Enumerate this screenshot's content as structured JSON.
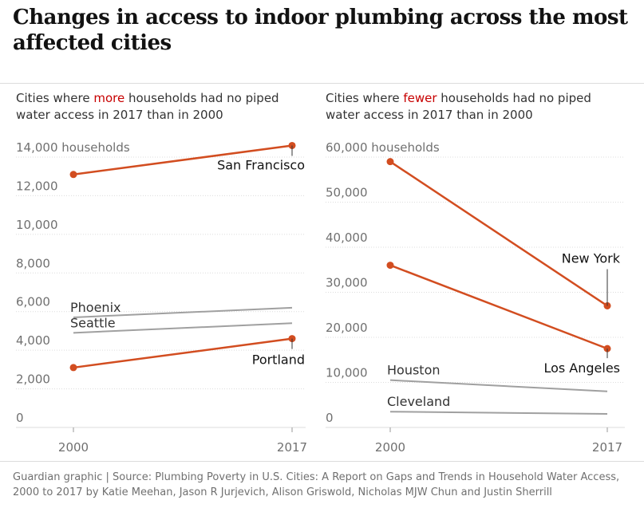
{
  "title": "Changes in access to indoor plumbing across the most affected cities",
  "chart_data": [
    {
      "type": "line",
      "subtitle_pre": "Cities where ",
      "subtitle_highlight": "more",
      "subtitle_post": " households had no piped water access in 2017 than in 2000",
      "x": [
        "2000",
        "2017"
      ],
      "ylim": [
        0,
        14000
      ],
      "y_ticks": [
        0,
        2000,
        4000,
        6000,
        8000,
        10000,
        12000,
        14000
      ],
      "y_tick_labels": [
        "0",
        "2,000",
        "4,000",
        "6,000",
        "8,000",
        "10,000",
        "12,000",
        "14,000 households"
      ],
      "series": [
        {
          "name": "San Francisco",
          "values": [
            13100,
            14600
          ],
          "highlight": true,
          "label_at": "end"
        },
        {
          "name": "Phoenix",
          "values": [
            5700,
            6200
          ],
          "highlight": false,
          "label_at": "start"
        },
        {
          "name": "Seattle",
          "values": [
            4900,
            5400
          ],
          "highlight": false,
          "label_at": "start"
        },
        {
          "name": "Portland",
          "values": [
            3100,
            4600
          ],
          "highlight": true,
          "label_at": "end"
        }
      ]
    },
    {
      "type": "line",
      "subtitle_pre": "Cities where ",
      "subtitle_highlight": "fewer",
      "subtitle_post": " households had no piped water access in 2017 than in 2000",
      "x": [
        "2000",
        "2017"
      ],
      "ylim": [
        0,
        60000
      ],
      "y_ticks": [
        0,
        10000,
        20000,
        30000,
        40000,
        50000,
        60000
      ],
      "y_tick_labels": [
        "0",
        "10,000",
        "20,000",
        "30,000",
        "40,000",
        "50,000",
        "60,000 households"
      ],
      "series": [
        {
          "name": "New York",
          "values": [
            59000,
            27000
          ],
          "highlight": true,
          "label_at": "end"
        },
        {
          "name": "Los Angeles",
          "values": [
            36000,
            17500
          ],
          "highlight": true,
          "label_at": "end"
        },
        {
          "name": "Houston",
          "values": [
            10500,
            8000
          ],
          "highlight": false,
          "label_at": "start"
        },
        {
          "name": "Cleveland",
          "values": [
            3500,
            3000
          ],
          "highlight": false,
          "label_at": "start"
        }
      ]
    }
  ],
  "colors": {
    "highlight": "#d24d20",
    "muted": "#a0a0a0",
    "grid": "#dcdcdc",
    "text": "#333333"
  },
  "footer": "Guardian graphic | Source: Plumbing Poverty in U.S. Cities: A Report on Gaps and Trends in Household Water Access, 2000 to 2017 by Katie Meehan, Jason R Jurjevich, Alison Griswold, Nicholas MJW Chun and Justin Sherrill"
}
